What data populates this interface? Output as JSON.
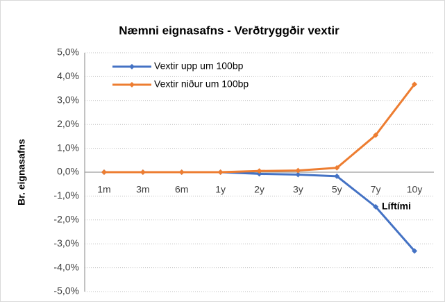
{
  "chart_data": {
    "type": "line",
    "title": "Næmni eignasafns - Verðtryggðir vextir",
    "x_label": "Líftími",
    "y_label": "Br. eignasafns",
    "categories": [
      "1m",
      "3m",
      "6m",
      "1y",
      "2y",
      "3y",
      "5y",
      "7y",
      "10y"
    ],
    "series": [
      {
        "name": "Vextir upp um 100bp",
        "color": "#4472c4",
        "values": [
          0,
          0,
          0,
          0,
          -0.07,
          -0.1,
          -0.17,
          -1.45,
          -3.3
        ]
      },
      {
        "name": "Vextir niður um 100bp",
        "color": "#ed7d31",
        "values": [
          0,
          0,
          0,
          0,
          0.05,
          0.07,
          0.18,
          1.55,
          3.68
        ]
      }
    ],
    "ylim": [
      -5,
      5
    ],
    "yticks": [
      {
        "value": -5,
        "label": "-5,0%"
      },
      {
        "value": -4,
        "label": "-4,0%"
      },
      {
        "value": -3,
        "label": "-3,0%"
      },
      {
        "value": -2,
        "label": "-2,0%"
      },
      {
        "value": -1,
        "label": "-1,0%"
      },
      {
        "value": 0,
        "label": "0,0%"
      },
      {
        "value": 1,
        "label": "1,0%"
      },
      {
        "value": 2,
        "label": "2,0%"
      },
      {
        "value": 3,
        "label": "3,0%"
      },
      {
        "value": 4,
        "label": "4,0%"
      },
      {
        "value": 5,
        "label": "5,0%"
      }
    ],
    "grid": true,
    "legend": "top-left"
  }
}
